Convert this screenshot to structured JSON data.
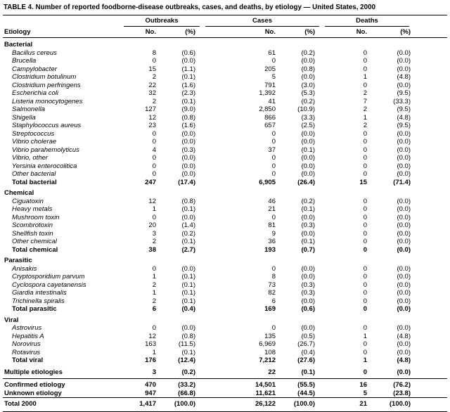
{
  "title": "TABLE 4. Number of reported foodborne-disease outbreaks, cases, and deaths, by etiology — United States, 2000",
  "columns": {
    "etiology": "Etiology",
    "groups": [
      {
        "label": "Outbreaks"
      },
      {
        "label": "Cases"
      },
      {
        "label": "Deaths"
      }
    ],
    "sub": {
      "no": "No.",
      "pct": "(%)"
    }
  },
  "rows": [
    {
      "type": "section",
      "label": "Bacterial",
      "values": [
        "",
        "",
        "",
        "",
        "",
        ""
      ]
    },
    {
      "type": "item",
      "label": "Bacillus cereus",
      "values": [
        "8",
        "(0.6)",
        "61",
        "(0.2)",
        "0",
        "(0.0)"
      ]
    },
    {
      "type": "item",
      "label": "Brucella",
      "values": [
        "0",
        "(0.0)",
        "0",
        "(0.0)",
        "0",
        "(0.0)"
      ]
    },
    {
      "type": "item",
      "label": "Campylobacter",
      "values": [
        "15",
        "(1.1)",
        "205",
        "(0.8)",
        "0",
        "(0.0)"
      ]
    },
    {
      "type": "item",
      "label": "Clostridium botulinum",
      "values": [
        "2",
        "(0.1)",
        "5",
        "(0.0)",
        "1",
        "(4.8)"
      ]
    },
    {
      "type": "item",
      "label": "Clostridium perfringens",
      "values": [
        "22",
        "(1.6)",
        "791",
        "(3.0)",
        "0",
        "(0.0)"
      ]
    },
    {
      "type": "item",
      "label": "Escherichia coli",
      "values": [
        "32",
        "(2.3)",
        "1,392",
        "(5.3)",
        "2",
        "(9.5)"
      ]
    },
    {
      "type": "item",
      "label": "Listeria monocytogenes",
      "values": [
        "2",
        "(0.1)",
        "41",
        "(0.2)",
        "7",
        "(33.3)"
      ]
    },
    {
      "type": "item",
      "label": "Salmonella",
      "values": [
        "127",
        "(9.0)",
        "2,850",
        "(10.9)",
        "2",
        "(9.5)"
      ]
    },
    {
      "type": "item",
      "label": "Shigella",
      "values": [
        "12",
        "(0.8)",
        "866",
        "(3.3)",
        "1",
        "(4.8)"
      ]
    },
    {
      "type": "item",
      "label": "Staphylococcus aureus",
      "values": [
        "23",
        "(1.6)",
        "657",
        "(2.5)",
        "2",
        "(9.5)"
      ]
    },
    {
      "type": "item",
      "label": "Streptococcus",
      "values": [
        "0",
        "(0.0)",
        "0",
        "(0.0)",
        "0",
        "(0.0)"
      ]
    },
    {
      "type": "item",
      "label": "Vibrio cholerae",
      "values": [
        "0",
        "(0.0)",
        "0",
        "(0.0)",
        "0",
        "(0.0)"
      ]
    },
    {
      "type": "item",
      "label": "Vibrio parahemolyticus",
      "values": [
        "4",
        "(0.3)",
        "37",
        "(0.1)",
        "0",
        "(0.0)"
      ]
    },
    {
      "type": "item",
      "label": "Vibrio, other",
      "values": [
        "0",
        "(0.0)",
        "0",
        "(0.0)",
        "0",
        "(0.0)"
      ]
    },
    {
      "type": "item",
      "label": "Yersinia enterocolitica",
      "values": [
        "0",
        "(0.0)",
        "0",
        "(0.0)",
        "0",
        "(0.0)"
      ]
    },
    {
      "type": "item",
      "label": "Other bacterial",
      "values": [
        "0",
        "(0.0)",
        "0",
        "(0.0)",
        "0",
        "(0.0)"
      ]
    },
    {
      "type": "total",
      "label": "Total bacterial",
      "values": [
        "247",
        "(17.4)",
        "6,905",
        "(26.4)",
        "15",
        "(71.4)"
      ]
    },
    {
      "type": "section",
      "label": "Chemical",
      "values": [
        "",
        "",
        "",
        "",
        "",
        ""
      ]
    },
    {
      "type": "item",
      "label": "Ciguatoxin",
      "values": [
        "12",
        "(0.8)",
        "46",
        "(0.2)",
        "0",
        "(0.0)"
      ]
    },
    {
      "type": "item",
      "label": "Heavy metals",
      "values": [
        "1",
        "(0.1)",
        "21",
        "(0.1)",
        "0",
        "(0.0)"
      ]
    },
    {
      "type": "item",
      "label": "Mushroom toxin",
      "values": [
        "0",
        "(0.0)",
        "0",
        "(0.0)",
        "0",
        "(0.0)"
      ]
    },
    {
      "type": "item",
      "label": "Scombrotoxin",
      "values": [
        "20",
        "(1.4)",
        "81",
        "(0.3)",
        "0",
        "(0.0)"
      ]
    },
    {
      "type": "item",
      "label": "Shellfish toxin",
      "values": [
        "3",
        "(0.2)",
        "9",
        "(0.0)",
        "0",
        "(0.0)"
      ]
    },
    {
      "type": "item",
      "label": "Other chemical",
      "values": [
        "2",
        "(0.1)",
        "36",
        "(0.1)",
        "0",
        "(0.0)"
      ]
    },
    {
      "type": "total",
      "label": "Total chemical",
      "values": [
        "38",
        "(2.7)",
        "193",
        "(0.7)",
        "0",
        "(0.0)"
      ]
    },
    {
      "type": "section",
      "label": "Parasitic",
      "values": [
        "",
        "",
        "",
        "",
        "",
        ""
      ]
    },
    {
      "type": "item",
      "label": "Anisakis",
      "values": [
        "0",
        "(0.0)",
        "0",
        "(0.0)",
        "0",
        "(0.0)"
      ]
    },
    {
      "type": "item",
      "label": "Cryptosporidium parvum",
      "values": [
        "1",
        "(0.1)",
        "8",
        "(0.0)",
        "0",
        "(0.0)"
      ]
    },
    {
      "type": "item",
      "label": "Cyclospora cayetanensis",
      "values": [
        "2",
        "(0.1)",
        "73",
        "(0.3)",
        "0",
        "(0.0)"
      ]
    },
    {
      "type": "item",
      "label": "Giardia intestinalis",
      "values": [
        "1",
        "(0.1)",
        "82",
        "(0.3)",
        "0",
        "(0.0)"
      ]
    },
    {
      "type": "item",
      "label": "Trichinella spiralis",
      "values": [
        "2",
        "(0.1)",
        "6",
        "(0.0)",
        "0",
        "(0.0)"
      ]
    },
    {
      "type": "total",
      "label": "Total parasitic",
      "values": [
        "6",
        "(0.4)",
        "169",
        "(0.6)",
        "0",
        "(0.0)"
      ]
    },
    {
      "type": "section",
      "label": "Viral",
      "values": [
        "",
        "",
        "",
        "",
        "",
        ""
      ]
    },
    {
      "type": "item",
      "label": "Astrovirus",
      "values": [
        "0",
        "(0.0)",
        "0",
        "(0.0)",
        "0",
        "(0.0)"
      ]
    },
    {
      "type": "item",
      "label": "Hepatitis A",
      "values": [
        "12",
        "(0.8)",
        "135",
        "(0.5)",
        "1",
        "(4.8)"
      ]
    },
    {
      "type": "item",
      "label": "Norovirus",
      "values": [
        "163",
        "(11.5)",
        "6,969",
        "(26.7)",
        "0",
        "(0.0)"
      ]
    },
    {
      "type": "item",
      "label": "Rotavirus",
      "values": [
        "1",
        "(0.1)",
        "108",
        "(0.4)",
        "0",
        "(0.0)"
      ]
    },
    {
      "type": "total",
      "label": "Total viral",
      "values": [
        "176",
        "(12.4)",
        "7,212",
        "(27.6)",
        "1",
        "(4.8)"
      ]
    },
    {
      "type": "standalone",
      "label": "Multiple etiologies",
      "values": [
        "3",
        "(0.2)",
        "22",
        "(0.1)",
        "0",
        "(0.0)"
      ]
    },
    {
      "type": "summary",
      "rule_above": true,
      "label": "Confirmed etiology",
      "values": [
        "470",
        "(33.2)",
        "14,501",
        "(55.5)",
        "16",
        "(76.2)"
      ]
    },
    {
      "type": "summary",
      "label": "Unknown etiology",
      "values": [
        "947",
        "(66.8)",
        "11,621",
        "(44.5)",
        "5",
        "(23.8)"
      ]
    },
    {
      "type": "grand",
      "rule_above": true,
      "label": "Total 2000",
      "values": [
        "1,417",
        "(100.0)",
        "26,122",
        "(100.0)",
        "21",
        "(100.0)"
      ]
    }
  ]
}
